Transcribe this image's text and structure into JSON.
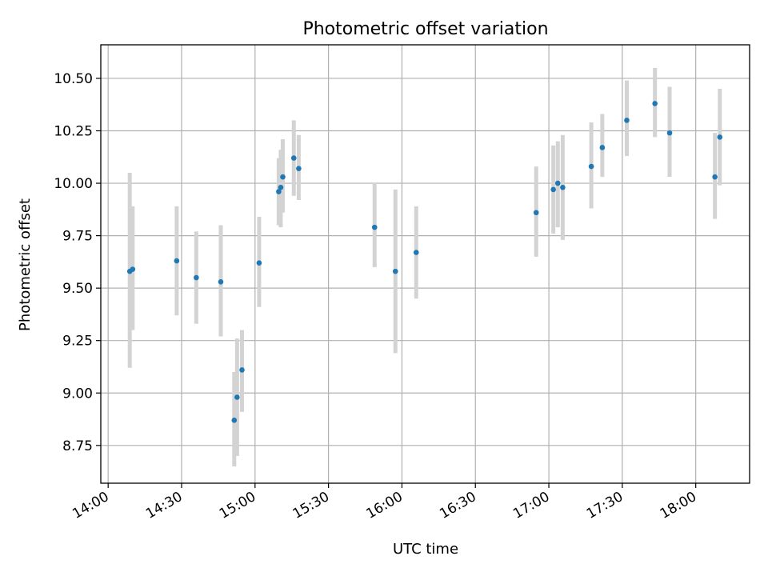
{
  "chart_data": {
    "type": "scatter",
    "title": "Photometric offset variation",
    "xlabel": "UTC time",
    "ylabel": "Photometric offset",
    "x_ticks": [
      "14:00",
      "14:30",
      "15:00",
      "15:30",
      "16:00",
      "16:30",
      "17:00",
      "17:30",
      "18:00"
    ],
    "y_ticks": [
      "8.75",
      "9.00",
      "9.25",
      "9.50",
      "9.75",
      "10.00",
      "10.25",
      "10.50"
    ],
    "xlim": [
      "13:57",
      "18:22"
    ],
    "ylim": [
      8.57,
      10.66
    ],
    "grid": true,
    "marker_color": "#1f77b4",
    "errorbar_color": "#d3d3d3",
    "points": [
      {
        "x": "14:08:50",
        "y": 9.58,
        "err_low": 9.12,
        "err_high": 10.05
      },
      {
        "x": "14:10:00",
        "y": 9.59,
        "err_low": 9.3,
        "err_high": 9.89
      },
      {
        "x": "14:28:00",
        "y": 9.63,
        "err_low": 9.37,
        "err_high": 9.89
      },
      {
        "x": "14:36:00",
        "y": 9.55,
        "err_low": 9.33,
        "err_high": 9.77
      },
      {
        "x": "14:46:00",
        "y": 9.53,
        "err_low": 9.27,
        "err_high": 9.8
      },
      {
        "x": "14:51:30",
        "y": 8.87,
        "err_low": 8.65,
        "err_high": 9.1
      },
      {
        "x": "14:52:40",
        "y": 8.98,
        "err_low": 8.7,
        "err_high": 9.26
      },
      {
        "x": "14:54:40",
        "y": 9.11,
        "err_low": 8.91,
        "err_high": 9.3
      },
      {
        "x": "15:01:40",
        "y": 9.62,
        "err_low": 9.41,
        "err_high": 9.84
      },
      {
        "x": "15:09:40",
        "y": 9.96,
        "err_low": 9.8,
        "err_high": 10.12
      },
      {
        "x": "15:10:30",
        "y": 9.98,
        "err_low": 9.79,
        "err_high": 10.16
      },
      {
        "x": "15:11:20",
        "y": 10.03,
        "err_low": 9.86,
        "err_high": 10.21
      },
      {
        "x": "15:15:50",
        "y": 10.12,
        "err_low": 9.94,
        "err_high": 10.3
      },
      {
        "x": "15:17:50",
        "y": 10.07,
        "err_low": 9.92,
        "err_high": 10.23
      },
      {
        "x": "15:48:50",
        "y": 9.79,
        "err_low": 9.6,
        "err_high": 10.0
      },
      {
        "x": "15:57:20",
        "y": 9.58,
        "err_low": 9.19,
        "err_high": 9.97
      },
      {
        "x": "16:05:50",
        "y": 9.67,
        "err_low": 9.45,
        "err_high": 9.89
      },
      {
        "x": "16:54:50",
        "y": 9.86,
        "err_low": 9.65,
        "err_high": 10.08
      },
      {
        "x": "17:01:50",
        "y": 9.97,
        "err_low": 9.76,
        "err_high": 10.18
      },
      {
        "x": "17:03:40",
        "y": 10.0,
        "err_low": 9.79,
        "err_high": 10.2
      },
      {
        "x": "17:05:40",
        "y": 9.98,
        "err_low": 9.73,
        "err_high": 10.23
      },
      {
        "x": "17:17:20",
        "y": 10.08,
        "err_low": 9.88,
        "err_high": 10.29
      },
      {
        "x": "17:21:50",
        "y": 10.17,
        "err_low": 10.03,
        "err_high": 10.33
      },
      {
        "x": "17:31:50",
        "y": 10.3,
        "err_low": 10.13,
        "err_high": 10.49
      },
      {
        "x": "17:43:20",
        "y": 10.38,
        "err_low": 10.22,
        "err_high": 10.55
      },
      {
        "x": "17:49:20",
        "y": 10.24,
        "err_low": 10.03,
        "err_high": 10.46
      },
      {
        "x": "18:07:50",
        "y": 10.03,
        "err_low": 9.83,
        "err_high": 10.24
      },
      {
        "x": "18:09:50",
        "y": 10.22,
        "err_low": 9.99,
        "err_high": 10.45
      }
    ]
  }
}
